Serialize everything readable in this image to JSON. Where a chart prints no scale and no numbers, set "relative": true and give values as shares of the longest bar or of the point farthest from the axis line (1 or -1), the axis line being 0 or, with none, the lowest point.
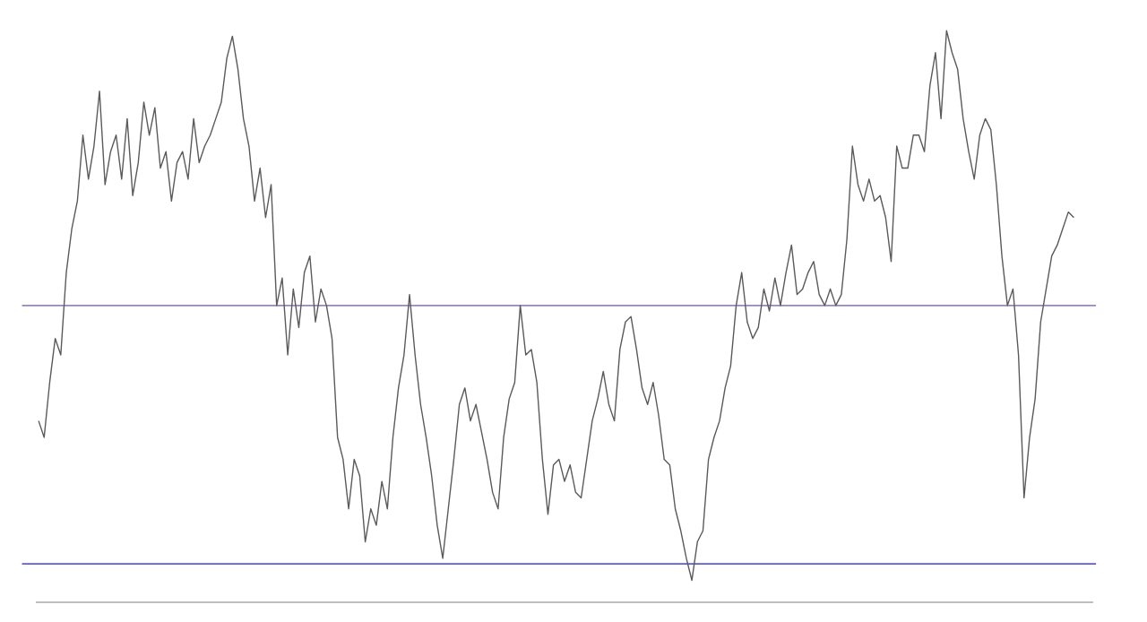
{
  "chart_data": {
    "type": "line",
    "relative": true,
    "color": "#5a5a5a",
    "categories": [
      null,
      null,
      null,
      null,
      null,
      null,
      null,
      null,
      null,
      null,
      null,
      null,
      null,
      null,
      null,
      null,
      null,
      null,
      null,
      null,
      null,
      null,
      null,
      null,
      null,
      null,
      null,
      null,
      null,
      null,
      null,
      null,
      null,
      null,
      null,
      null,
      null,
      null,
      null,
      null,
      null,
      null,
      null,
      null,
      null,
      null,
      null,
      null,
      null,
      null,
      null,
      null,
      null,
      null,
      null,
      null,
      null,
      null,
      null,
      null,
      null,
      null,
      null,
      null,
      null,
      null,
      null,
      null,
      null,
      null,
      null,
      null,
      null,
      null,
      null,
      null,
      null,
      null,
      null,
      null,
      null,
      null,
      null,
      null,
      null,
      null,
      null,
      null,
      null,
      null,
      null,
      null,
      null,
      null,
      null,
      null,
      null,
      null,
      null,
      null,
      null,
      null,
      null,
      null,
      null,
      null,
      null,
      null,
      null,
      null,
      null,
      null,
      null,
      null,
      null,
      null,
      null,
      null,
      null,
      null,
      null,
      null,
      null,
      null,
      null,
      null,
      null,
      null,
      null,
      null,
      null,
      null,
      null,
      null,
      null,
      null,
      null,
      null,
      null,
      null,
      null,
      null,
      null,
      null,
      null,
      null,
      null,
      null,
      null,
      null,
      null,
      null,
      null,
      null,
      null,
      null,
      null,
      null,
      null,
      null,
      null,
      null,
      null,
      null,
      null,
      null,
      null,
      null,
      null,
      null,
      null,
      null,
      null,
      null,
      null,
      null,
      null,
      null,
      null,
      null,
      null,
      null,
      null,
      null,
      null,
      null,
      null,
      null
    ],
    "values": [
      0.29,
      0.26,
      0.36,
      0.44,
      0.41,
      0.56,
      0.64,
      0.69,
      0.81,
      0.73,
      0.79,
      0.89,
      0.72,
      0.78,
      0.81,
      0.73,
      0.84,
      0.7,
      0.76,
      0.87,
      0.81,
      0.86,
      0.75,
      0.78,
      0.69,
      0.76,
      0.78,
      0.73,
      0.84,
      0.76,
      0.79,
      0.81,
      0.84,
      0.87,
      0.95,
      0.99,
      0.93,
      0.84,
      0.79,
      0.69,
      0.75,
      0.66,
      0.72,
      0.5,
      0.55,
      0.41,
      0.53,
      0.46,
      0.56,
      0.59,
      0.47,
      0.53,
      0.5,
      0.44,
      0.26,
      0.22,
      0.13,
      0.22,
      0.19,
      0.07,
      0.13,
      0.1,
      0.18,
      0.13,
      0.26,
      0.35,
      0.41,
      0.52,
      0.41,
      0.32,
      0.26,
      0.19,
      0.1,
      0.04,
      0.13,
      0.22,
      0.32,
      0.35,
      0.29,
      0.32,
      0.27,
      0.22,
      0.16,
      0.13,
      0.26,
      0.33,
      0.36,
      0.5,
      0.41,
      0.42,
      0.36,
      0.22,
      0.12,
      0.21,
      0.22,
      0.18,
      0.21,
      0.16,
      0.15,
      0.22,
      0.29,
      0.33,
      0.38,
      0.32,
      0.29,
      0.42,
      0.47,
      0.48,
      0.42,
      0.35,
      0.32,
      0.36,
      0.3,
      0.22,
      0.21,
      0.13,
      0.09,
      0.04,
      0,
      0.07,
      0.09,
      0.22,
      0.26,
      0.29,
      0.35,
      0.39,
      0.5,
      0.56,
      0.47,
      0.44,
      0.46,
      0.53,
      0.49,
      0.55,
      0.5,
      0.56,
      0.61,
      0.52,
      0.53,
      0.56,
      0.58,
      0.52,
      0.5,
      0.53,
      0.5,
      0.52,
      0.62,
      0.79,
      0.72,
      0.69,
      0.73,
      0.69,
      0.7,
      0.66,
      0.58,
      0.79,
      0.75,
      0.75,
      0.81,
      0.81,
      0.78,
      0.9,
      0.96,
      0.84,
      1,
      0.96,
      0.93,
      0.84,
      0.78,
      0.73,
      0.81,
      0.84,
      0.82,
      0.72,
      0.59,
      0.5,
      0.53,
      0.41,
      0.15,
      0.26,
      0.33,
      0.47,
      0.53,
      0.59,
      0.61,
      0.64,
      0.67,
      0.66
    ],
    "ref_lines": [
      {
        "axis": "y",
        "value": 0.5,
        "color": "#9a86b4"
      },
      {
        "axis": "y",
        "value": 0.03,
        "color": "#5b5bd6"
      }
    ]
  }
}
